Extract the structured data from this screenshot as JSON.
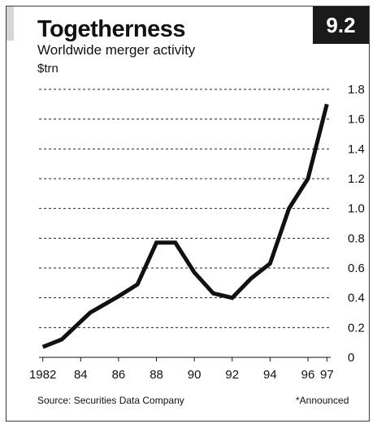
{
  "header": {
    "figure_number": "9.2",
    "title": "Togetherness",
    "subtitle": "Worldwide merger activity",
    "unit": "$trn"
  },
  "footer": {
    "source": "Source: Securities Data Company",
    "note": "*Announced"
  },
  "chart_data": {
    "type": "line",
    "title": "Togetherness",
    "subtitle": "Worldwide merger activity",
    "ylabel": "$trn",
    "xlabel": "",
    "x": [
      1982,
      1983,
      1984.5,
      1986,
      1987,
      1988,
      1989,
      1990,
      1991,
      1992,
      1993,
      1994,
      1995,
      1996,
      1997
    ],
    "values": [
      0.07,
      0.12,
      0.3,
      0.41,
      0.49,
      0.77,
      0.77,
      0.57,
      0.43,
      0.4,
      0.53,
      0.63,
      1.0,
      1.2,
      1.7
    ],
    "ylim": [
      0,
      1.8
    ],
    "yticks": [
      0,
      0.2,
      0.4,
      0.6,
      0.8,
      1.0,
      1.2,
      1.4,
      1.6,
      1.8
    ],
    "ytick_labels": [
      "0",
      "0.2",
      "0.4",
      "0.6",
      "0.8",
      "1.0",
      "1.2",
      "1.4",
      "1.6",
      "1.8"
    ],
    "xticks": [
      1982,
      1984,
      1986,
      1988,
      1990,
      1992,
      1994,
      1996,
      1997
    ],
    "xtick_labels": [
      "1982",
      "84",
      "86",
      "88",
      "90",
      "92",
      "94",
      "96",
      "97"
    ],
    "grid": true,
    "y_axis_side": "right",
    "line_color": "#111111"
  }
}
